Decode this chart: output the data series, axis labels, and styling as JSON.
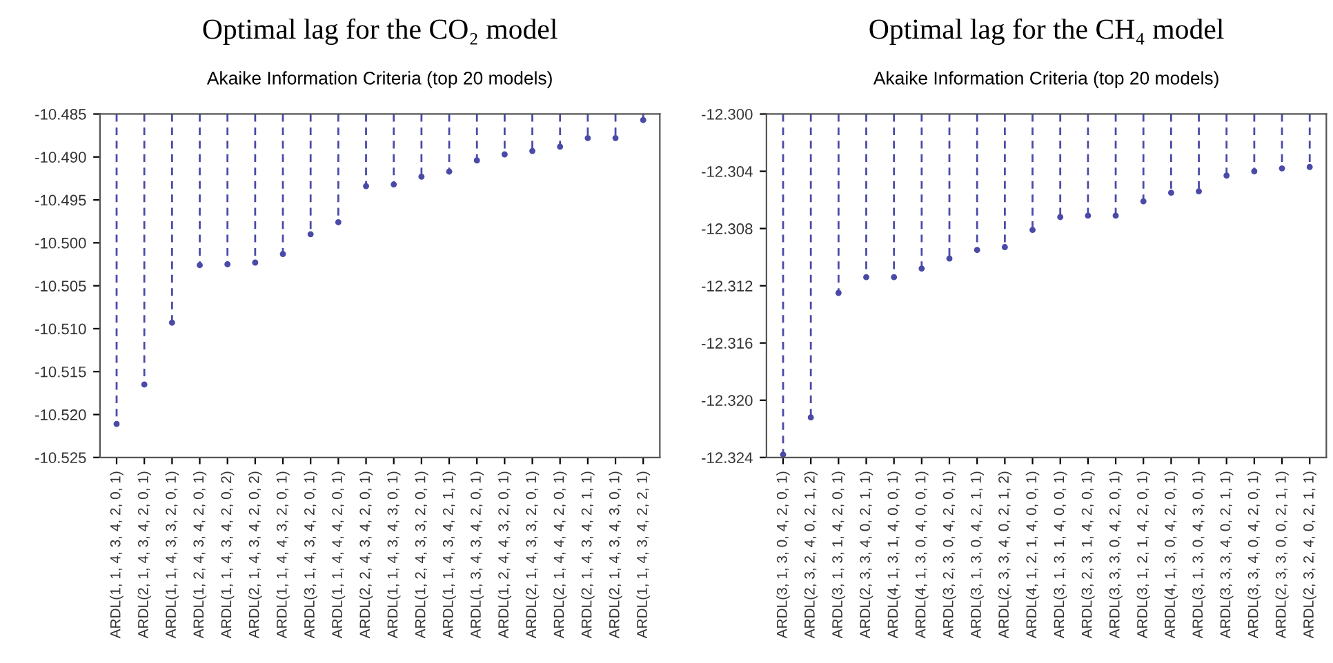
{
  "chart_data": [
    {
      "type": "lollipop",
      "title": "Optimal lag for the CO₂ model",
      "subtitle": "Akaike Information Criteria (top 20 models)",
      "categories": [
        "ARDL(1, 1, 4, 3, 4, 2, 0, 1)",
        "ARDL(2, 1, 4, 3, 4, 2, 0, 1)",
        "ARDL(1, 1, 4, 3, 3, 2, 0, 1)",
        "ARDL(1, 2, 4, 3, 4, 2, 0, 1)",
        "ARDL(1, 1, 4, 3, 4, 2, 0, 2)",
        "ARDL(2, 1, 4, 3, 4, 2, 0, 2)",
        "ARDL(1, 1, 4, 4, 3, 2, 0, 1)",
        "ARDL(3, 1, 4, 3, 4, 2, 0, 1)",
        "ARDL(1, 1, 4, 4, 4, 2, 0, 1)",
        "ARDL(2, 2, 4, 3, 4, 2, 0, 1)",
        "ARDL(1, 1, 4, 3, 4, 3, 0, 1)",
        "ARDL(1, 2, 4, 3, 3, 2, 0, 1)",
        "ARDL(1, 1, 4, 3, 4, 2, 1, 1)",
        "ARDL(1, 3, 4, 3, 4, 2, 0, 1)",
        "ARDL(1, 2, 4, 4, 3, 2, 0, 1)",
        "ARDL(2, 1, 4, 3, 3, 2, 0, 1)",
        "ARDL(2, 1, 4, 4, 4, 2, 0, 1)",
        "ARDL(2, 1, 4, 3, 4, 2, 1, 1)",
        "ARDL(2, 1, 4, 3, 4, 3, 0, 1)",
        "ARDL(1, 1, 4, 3, 4, 2, 2, 1)"
      ],
      "series": [
        {
          "color": "#4a4aa8",
          "values": [
            -10.5211,
            -10.5165,
            -10.5093,
            -10.5026,
            -10.5025,
            -10.5023,
            -10.5013,
            -10.499,
            -10.4976,
            -10.4934,
            -10.4932,
            -10.4923,
            -10.4917,
            -10.4904,
            -10.4897,
            -10.4893,
            -10.4888,
            -10.4878,
            -10.4878,
            -10.4857
          ]
        }
      ],
      "ylim": [
        -10.525,
        -10.485
      ],
      "yticks": [
        -10.525,
        {
          "value": -10.52,
          "label": "-10.520"
        },
        -10.515,
        {
          "value": -10.51,
          "label": "-10.510"
        },
        -10.505,
        {
          "value": -10.5,
          "label": "-10.500"
        },
        -10.495,
        {
          "value": -10.49,
          "label": "-10.490"
        },
        -10.485
      ],
      "marker": "circle",
      "line_style": "dashed",
      "legend": false
    },
    {
      "type": "lollipop",
      "title": "Optimal lag for the CH₄ model",
      "subtitle": "Akaike Information Criteria (top 20 models)",
      "categories": [
        "ARDL(3, 1, 3, 0, 4, 2, 0, 1)",
        "ARDL(2, 3, 2, 4, 0, 2, 1, 2)",
        "ARDL(3, 1, 3, 1, 4, 2, 0, 1)",
        "ARDL(2, 3, 3, 4, 0, 2, 1, 1)",
        "ARDL(4, 1, 3, 1, 4, 0, 0, 1)",
        "ARDL(4, 1, 3, 0, 4, 0, 0, 1)",
        "ARDL(3, 2, 3, 0, 4, 2, 0, 1)",
        "ARDL(3, 1, 3, 0, 4, 2, 1, 1)",
        "ARDL(2, 3, 3, 4, 0, 2, 1, 2)",
        "ARDL(4, 1, 2, 1, 4, 0, 0, 1)",
        "ARDL(3, 1, 3, 1, 4, 0, 0, 1)",
        "ARDL(3, 2, 3, 1, 4, 2, 0, 1)",
        "ARDL(3, 3, 3, 0, 4, 2, 0, 1)",
        "ARDL(3, 1, 2, 1, 4, 2, 0, 1)",
        "ARDL(4, 1, 3, 0, 4, 2, 0, 1)",
        "ARDL(3, 1, 3, 0, 4, 3, 0, 1)",
        "ARDL(3, 3, 3, 4, 0, 2, 1, 1)",
        "ARDL(3, 3, 4, 0, 4, 2, 0, 1)",
        "ARDL(2, 3, 3, 0, 0, 2, 1, 1)",
        "ARDL(2, 3, 2, 4, 0, 2, 1, 1)"
      ],
      "series": [
        {
          "color": "#4a4aa8",
          "values": [
            -12.3238,
            -12.3212,
            -12.3125,
            -12.3114,
            -12.3114,
            -12.3108,
            -12.3101,
            -12.3095,
            -12.3093,
            -12.3081,
            -12.3072,
            -12.3071,
            -12.3071,
            -12.3061,
            -12.3055,
            -12.3054,
            -12.3043,
            -12.304,
            -12.3038,
            -12.3037
          ]
        }
      ],
      "ylim": [
        -12.324,
        -12.3
      ],
      "yticks": [
        {
          "value": -12.324,
          "label": "-12.324"
        },
        {
          "value": -12.32,
          "label": "-12.320"
        },
        {
          "value": -12.316,
          "label": "-12.316"
        },
        {
          "value": -12.312,
          "label": "-12.312"
        },
        {
          "value": -12.308,
          "label": "-12.308"
        },
        {
          "value": -12.304,
          "label": "-12.304"
        },
        {
          "value": -12.3,
          "label": "-12.300"
        }
      ],
      "marker": "circle",
      "line_style": "dashed",
      "legend": false
    }
  ]
}
